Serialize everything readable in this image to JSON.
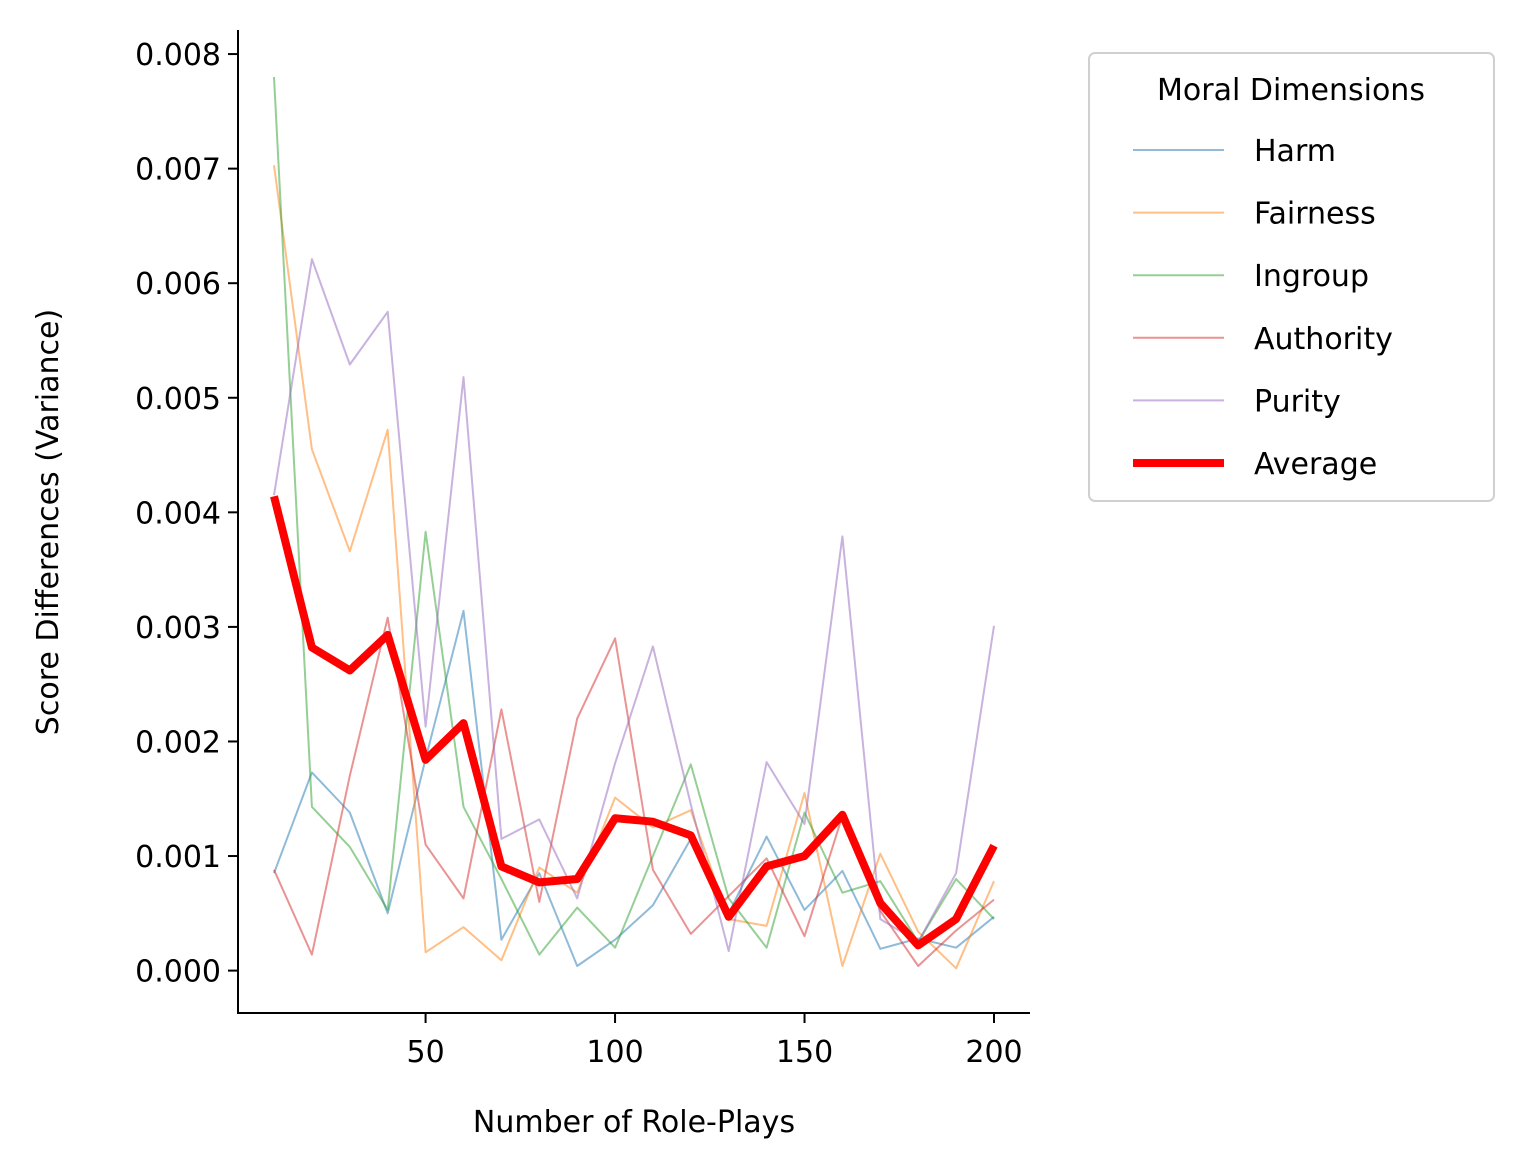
{
  "chart_data": {
    "type": "line",
    "title": "",
    "xlabel": "Number of Role-Plays",
    "ylabel": "Score Differences (Variance)",
    "xlim": [
      0.5,
      209.5
    ],
    "ylim": [
      -0.00037,
      0.00821
    ],
    "x_ticks": [
      50,
      100,
      150,
      200
    ],
    "x_tick_labels": [
      "50",
      "100",
      "150",
      "200"
    ],
    "y_ticks": [
      0,
      0.001,
      0.002,
      0.003,
      0.004,
      0.005,
      0.006,
      0.007,
      0.008
    ],
    "y_tick_labels": [
      "0.000",
      "0.001",
      "0.002",
      "0.003",
      "0.004",
      "0.005",
      "0.006",
      "0.007",
      "0.008"
    ],
    "grid": false,
    "legend_position": "outside-upper-right",
    "legend_title": "Moral Dimensions",
    "x": [
      10,
      20,
      30,
      40,
      50,
      60,
      70,
      80,
      90,
      100,
      110,
      120,
      130,
      140,
      150,
      160,
      170,
      180,
      190,
      200
    ],
    "series": [
      {
        "name": "Harm",
        "color": "#1f77b4",
        "opacity": 0.5,
        "width": 2,
        "values": [
          0.00085,
          0.00173,
          0.00138,
          0.0005,
          0.00185,
          0.00314,
          0.00027,
          0.00085,
          4e-05,
          0.00027,
          0.00057,
          0.00115,
          0.0005,
          0.00117,
          0.00053,
          0.00087,
          0.00019,
          0.00028,
          0.0002,
          0.00047
        ]
      },
      {
        "name": "Fairness",
        "color": "#ff7f0e",
        "opacity": 0.5,
        "width": 2,
        "values": [
          0.00703,
          0.00455,
          0.00366,
          0.00472,
          0.00016,
          0.00038,
          9e-05,
          0.0009,
          0.00068,
          0.00151,
          0.00125,
          0.0014,
          0.00045,
          0.00039,
          0.00155,
          4e-05,
          0.00102,
          0.00034,
          2e-05,
          0.00078
        ]
      },
      {
        "name": "Ingroup",
        "color": "#2ca02c",
        "opacity": 0.5,
        "width": 2,
        "values": [
          0.0078,
          0.00143,
          0.00108,
          0.00053,
          0.00383,
          0.00143,
          0.0008,
          0.00014,
          0.00055,
          0.0002,
          0.001,
          0.0018,
          0.00063,
          0.0002,
          0.00138,
          0.00068,
          0.00078,
          0.00025,
          0.0008,
          0.00045
        ]
      },
      {
        "name": "Authority",
        "color": "#d62728",
        "opacity": 0.5,
        "width": 2,
        "values": [
          0.00088,
          0.00014,
          0.0017,
          0.00308,
          0.0011,
          0.00063,
          0.00228,
          0.0006,
          0.0022,
          0.0029,
          0.00088,
          0.00032,
          0.00065,
          0.00098,
          0.0003,
          0.00135,
          0.00052,
          4e-05,
          0.00035,
          0.00062
        ]
      },
      {
        "name": "Purity",
        "color": "#9467bd",
        "opacity": 0.5,
        "width": 2,
        "values": [
          0.00415,
          0.00621,
          0.00529,
          0.00575,
          0.00213,
          0.00518,
          0.00115,
          0.00132,
          0.00063,
          0.00181,
          0.00283,
          0.00145,
          0.00017,
          0.00182,
          0.00128,
          0.00379,
          0.00045,
          0.00025,
          0.00085,
          0.00301
        ]
      },
      {
        "name": "Average",
        "color": "#ff0000",
        "opacity": 1,
        "width": 8,
        "values": [
          0.00414,
          0.00282,
          0.00262,
          0.00293,
          0.00184,
          0.00216,
          0.00091,
          0.00077,
          0.0008,
          0.00133,
          0.0013,
          0.00118,
          0.00047,
          0.00091,
          0.001,
          0.00136,
          0.00059,
          0.00022,
          0.00045,
          0.00109
        ]
      }
    ]
  }
}
